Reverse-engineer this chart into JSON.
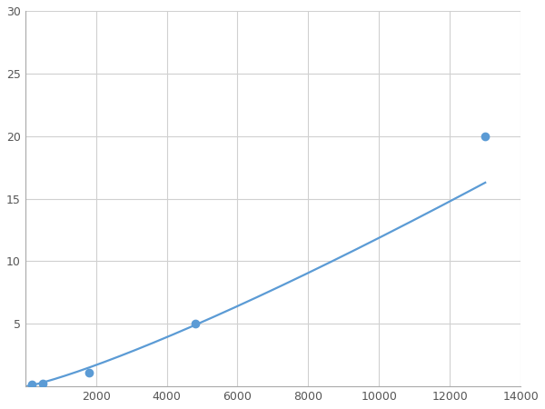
{
  "x_data": [
    200,
    500,
    1800,
    4800,
    13000
  ],
  "y_data": [
    0.15,
    0.25,
    1.1,
    5.0,
    20.0
  ],
  "line_color": "#5b9bd5",
  "marker_color": "#5b9bd5",
  "marker_size": 6,
  "line_width": 1.6,
  "xlim": [
    0,
    14000
  ],
  "ylim": [
    0,
    30
  ],
  "xticks": [
    0,
    2000,
    4000,
    6000,
    8000,
    10000,
    12000,
    14000
  ],
  "yticks": [
    0,
    5,
    10,
    15,
    20,
    25,
    30
  ],
  "grid_color": "#d0d0d0",
  "background_color": "#ffffff",
  "figsize": [
    6.0,
    4.5
  ],
  "dpi": 100
}
